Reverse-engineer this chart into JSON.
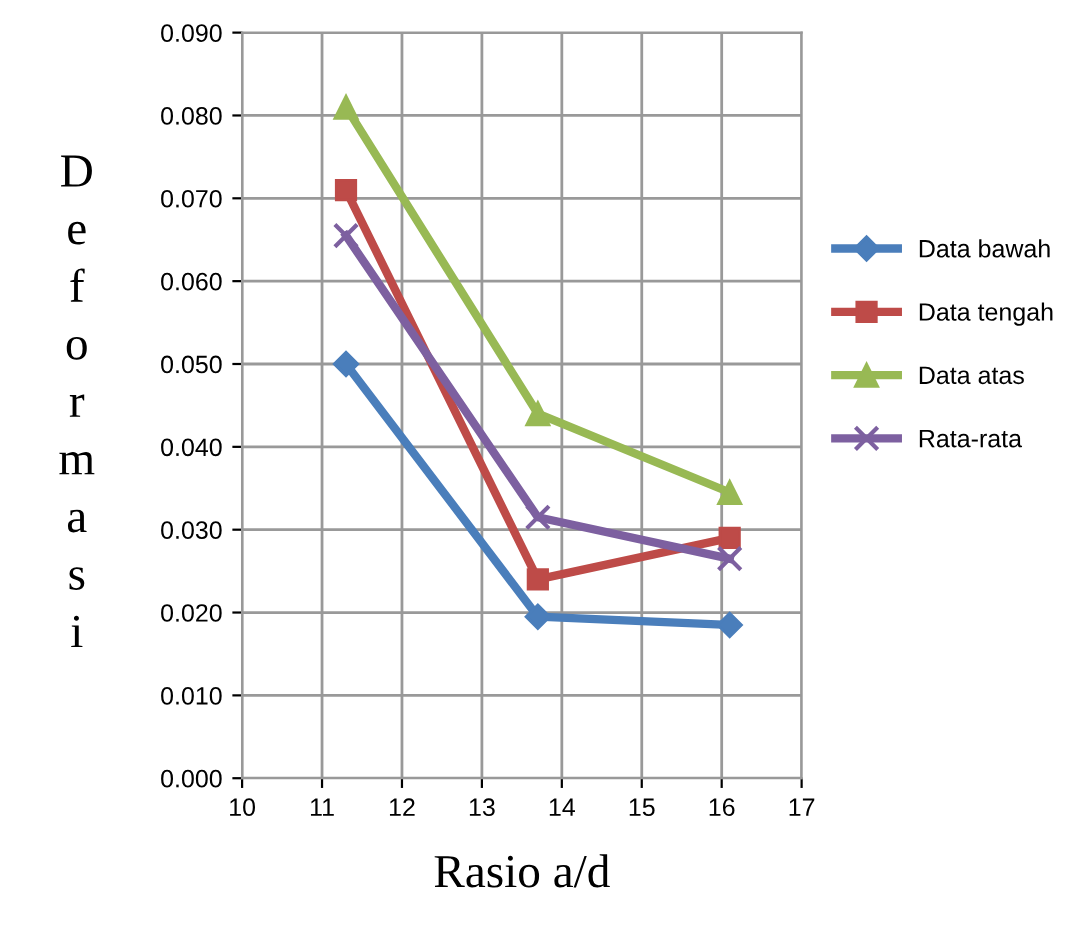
{
  "chart_data": {
    "type": "line",
    "xlabel": "Rasio a/d",
    "ylabel": "Deformasi",
    "xlim": [
      10,
      17
    ],
    "xticks": [
      10,
      11,
      12,
      13,
      14,
      15,
      16,
      17
    ],
    "ylim": [
      0,
      0.09
    ],
    "yticks": [
      {
        "value": 0,
        "label": "0.000"
      },
      {
        "value": 0.01,
        "label": "0.010"
      },
      {
        "value": 0.02,
        "label": "0.020"
      },
      {
        "value": 0.03,
        "label": "0.030"
      },
      {
        "value": 0.04,
        "label": "0.040"
      },
      {
        "value": 0.05,
        "label": "0.050"
      },
      {
        "value": 0.06,
        "label": "0.060"
      },
      {
        "value": 0.07,
        "label": "0.070"
      },
      {
        "value": 0.08,
        "label": "0.080"
      },
      {
        "value": 0.09,
        "label": "0.090"
      }
    ],
    "x": [
      11.3,
      13.7,
      16.1
    ],
    "grid": true,
    "legend": "right",
    "series": [
      {
        "name": "Data bawah",
        "color": "#4a7ebb",
        "marker": "diamond",
        "values": [
          0.05,
          0.0195,
          0.0185
        ]
      },
      {
        "name": "Data tengah",
        "color": "#be4b48",
        "marker": "square",
        "values": [
          0.071,
          0.024,
          0.029
        ]
      },
      {
        "name": "Data atas",
        "color": "#98b954",
        "marker": "triangle",
        "values": [
          0.081,
          0.044,
          0.0345
        ]
      },
      {
        "name": "Rata-rata",
        "color": "#7d60a0",
        "marker": "cross",
        "values": [
          0.0655,
          0.0315,
          0.0265
        ]
      }
    ]
  }
}
